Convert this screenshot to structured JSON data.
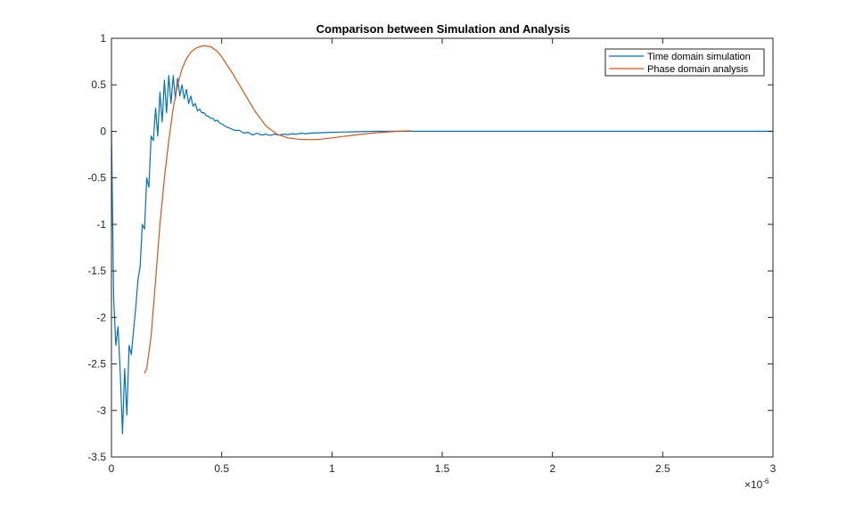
{
  "chart_data": {
    "type": "line",
    "title": "Comparison between Simulation and Analysis",
    "xlabel": "",
    "ylabel": "",
    "x_exponent_label": "×10",
    "x_exponent": "-6",
    "xlim": [
      0,
      3e-06
    ],
    "ylim": [
      -3.5,
      1
    ],
    "xticks": [
      "0",
      "0.5",
      "1",
      "1.5",
      "2",
      "2.5",
      "3"
    ],
    "yticks": [
      "1",
      "0.5",
      "0",
      "-0.5",
      "-1",
      "-1.5",
      "-2",
      "-2.5",
      "-3",
      "-3.5"
    ],
    "grid": false,
    "legend_position": "northeast",
    "series": [
      {
        "name": "Time domain simulation",
        "color": "#0072BD",
        "x_us": [
          0,
          0.01,
          0.02,
          0.03,
          0.04,
          0.05,
          0.06,
          0.07,
          0.08,
          0.09,
          0.1,
          0.11,
          0.12,
          0.13,
          0.14,
          0.15,
          0.16,
          0.17,
          0.18,
          0.19,
          0.2,
          0.21,
          0.22,
          0.23,
          0.24,
          0.25,
          0.26,
          0.27,
          0.28,
          0.29,
          0.3,
          0.31,
          0.32,
          0.33,
          0.34,
          0.35,
          0.36,
          0.37,
          0.38,
          0.39,
          0.4,
          0.41,
          0.42,
          0.43,
          0.44,
          0.45,
          0.46,
          0.47,
          0.48,
          0.49,
          0.5,
          0.52,
          0.54,
          0.56,
          0.58,
          0.6,
          0.62,
          0.64,
          0.66,
          0.68,
          0.7,
          0.72,
          0.74,
          0.76,
          0.78,
          0.8,
          0.82,
          0.84,
          0.86,
          0.88,
          0.9,
          0.95,
          1.0,
          1.1,
          1.2,
          1.3,
          1.4,
          1.5,
          2.0,
          2.5,
          3.0
        ],
        "values": [
          0,
          -1.8,
          -2.3,
          -2.1,
          -2.6,
          -3.25,
          -2.55,
          -3.05,
          -2.3,
          -2.4,
          -2.15,
          -1.9,
          -1.6,
          -1.45,
          -1.0,
          -1.05,
          -0.5,
          -0.6,
          -0.05,
          -0.1,
          0.25,
          -0.05,
          0.42,
          0.1,
          0.55,
          0.2,
          0.6,
          0.3,
          0.6,
          0.35,
          0.57,
          0.38,
          0.5,
          0.35,
          0.45,
          0.3,
          0.38,
          0.27,
          0.3,
          0.22,
          0.24,
          0.2,
          0.2,
          0.17,
          0.16,
          0.14,
          0.14,
          0.11,
          0.12,
          0.09,
          0.08,
          0.05,
          0.03,
          0.01,
          0.01,
          -0.02,
          -0.01,
          -0.04,
          -0.02,
          -0.04,
          -0.03,
          -0.045,
          -0.03,
          -0.04,
          -0.03,
          -0.035,
          -0.025,
          -0.03,
          -0.02,
          -0.025,
          -0.02,
          -0.015,
          -0.01,
          -0.005,
          0,
          0,
          0,
          0,
          0,
          0,
          0
        ]
      },
      {
        "name": "Phase domain analysis",
        "color": "#D95319",
        "x_us": [
          0.15,
          0.16,
          0.18,
          0.2,
          0.22,
          0.24,
          0.26,
          0.28,
          0.3,
          0.32,
          0.34,
          0.36,
          0.38,
          0.4,
          0.42,
          0.45,
          0.48,
          0.5,
          0.55,
          0.6,
          0.65,
          0.7,
          0.75,
          0.8,
          0.85,
          0.9,
          0.95,
          1.0,
          1.1,
          1.2,
          1.3,
          1.36
        ],
        "values": [
          -2.6,
          -2.55,
          -2.2,
          -1.6,
          -1.0,
          -0.5,
          -0.1,
          0.25,
          0.5,
          0.67,
          0.78,
          0.85,
          0.89,
          0.91,
          0.92,
          0.91,
          0.86,
          0.8,
          0.62,
          0.42,
          0.22,
          0.06,
          -0.03,
          -0.07,
          -0.085,
          -0.09,
          -0.085,
          -0.07,
          -0.04,
          -0.015,
          0.0,
          0.005
        ]
      }
    ]
  },
  "legend": {
    "items": [
      {
        "label": "Time domain simulation",
        "color": "#0072BD"
      },
      {
        "label": "Phase domain analysis",
        "color": "#D95319"
      }
    ]
  }
}
